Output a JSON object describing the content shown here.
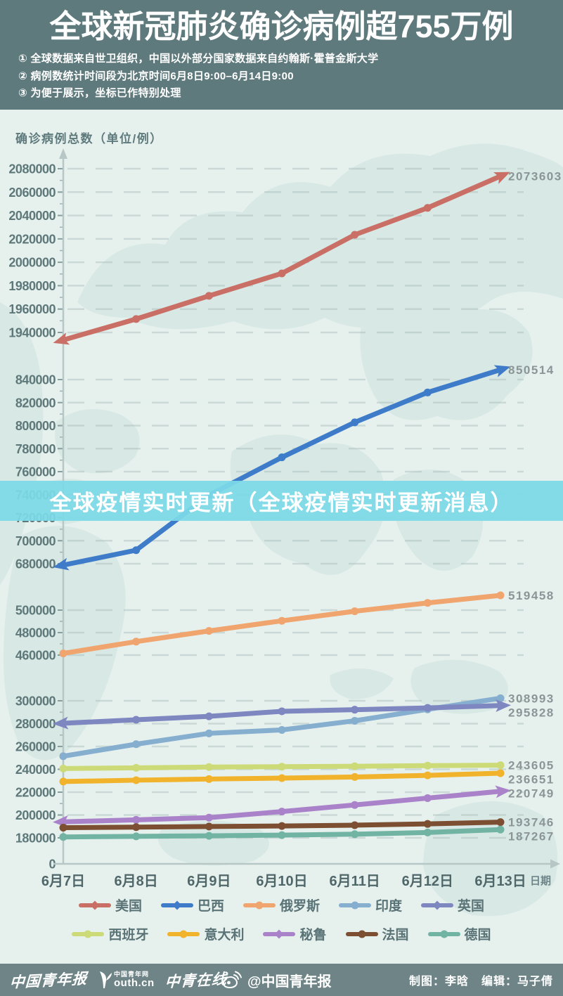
{
  "header": {
    "title": "全球新冠肺炎确诊病例超755万例",
    "notes": [
      "① 全球数据来自世卫组织，中国以外部分国家数据来自约翰斯·霍普金斯大学",
      "② 病例数统计时间段为北京时间6月8日9:00–6月14日9:00",
      "③ 为便于展示，坐标已作特别处理"
    ]
  },
  "banner": {
    "text": "全球疫情实时更新（全球疫情实时更新消息）"
  },
  "chart_data": {
    "type": "line",
    "title": "全球新冠肺炎确诊病例超755万例",
    "ylabel": "确诊病例总数（单位/例）",
    "xlabel": "日期",
    "legend_position": "bottom",
    "grid": true,
    "categories": [
      "6月7日",
      "6月8日",
      "6月9日",
      "6月10日",
      "6月11日",
      "6月12日",
      "6月13日"
    ],
    "y_ticks": [
      2080000,
      2060000,
      2040000,
      2020000,
      2000000,
      1980000,
      1960000,
      1940000,
      840000,
      820000,
      800000,
      780000,
      760000,
      740000,
      720000,
      700000,
      680000,
      500000,
      480000,
      460000,
      300000,
      280000,
      260000,
      240000,
      220000,
      200000,
      180000,
      0
    ],
    "y_axis_breaks": [
      [
        1940000,
        840000
      ],
      [
        680000,
        500000
      ],
      [
        460000,
        300000
      ],
      [
        180000,
        0
      ]
    ],
    "series": [
      {
        "key": "usa",
        "name": "美国",
        "color": "#c96f66",
        "marker": "arrow",
        "values": [
          1933500,
          1951500,
          1971300,
          1990500,
          2023500,
          2046500,
          2073603
        ],
        "end_label": "2073603"
      },
      {
        "key": "brazil",
        "name": "巴西",
        "color": "#3e7cc9",
        "marker": "arrow",
        "values": [
          672846,
          691758,
          739503,
          772416,
          802828,
          828810,
          850514
        ],
        "end_label": "850514"
      },
      {
        "key": "russia",
        "name": "俄罗斯",
        "color": "#f0a46e",
        "marker": "circle",
        "values": [
          461500,
          472000,
          481500,
          490500,
          499000,
          509500,
          519458
        ],
        "end_label": "519458"
      },
      {
        "key": "india",
        "name": "印度",
        "color": "#86aecf",
        "marker": "circle",
        "values": [
          251500,
          262000,
          271500,
          274500,
          282500,
          292500,
          308993
        ],
        "end_label": "308993"
      },
      {
        "key": "uk",
        "name": "英国",
        "color": "#7e87c0",
        "marker": "arrow",
        "values": [
          280300,
          283400,
          286400,
          290800,
          292200,
          293800,
          295828
        ],
        "end_label": "295828"
      },
      {
        "key": "spain",
        "name": "西班牙",
        "color": "#cdda78",
        "marker": "circle",
        "values": [
          240700,
          241300,
          242000,
          242300,
          242700,
          243200,
          243605
        ],
        "end_label": "243605"
      },
      {
        "key": "italy",
        "name": "意大利",
        "color": "#f2b32c",
        "marker": "circle",
        "values": [
          229300,
          230500,
          231500,
          232300,
          233300,
          234700,
          236651
        ],
        "end_label": "236651"
      },
      {
        "key": "peru",
        "name": "秘鲁",
        "color": "#aa82c9",
        "marker": "arrow",
        "values": [
          194000,
          195800,
          197700,
          203000,
          208800,
          214800,
          220749
        ],
        "end_label": "220749"
      },
      {
        "key": "france",
        "name": "法国",
        "color": "#7c4f33",
        "marker": "circle",
        "values": [
          188900,
          189400,
          189900,
          190400,
          191100,
          192200,
          193746
        ],
        "end_label": "193746"
      },
      {
        "key": "germany",
        "name": "德国",
        "color": "#72b4a3",
        "marker": "circle",
        "values": [
          180800,
          181300,
          181800,
          182400,
          183200,
          184700,
          187267
        ],
        "end_label": "187267"
      }
    ]
  },
  "footer": {
    "paper_logo": "中国青年报",
    "youth_logo_top": "中国青年网",
    "youth_logo_domain": "outh.cn",
    "online_logo": "中青在线",
    "weibo_handle": "@中国青年报",
    "credits": [
      "制图：李晗",
      "编辑：马子倩"
    ]
  },
  "colors": {
    "header_bg": "#5f7a7d",
    "footer_bg": "#6e8487",
    "banner_bg": "#7cd9e7",
    "plot_bg": "#e6f1ee",
    "map_watermark": "#d5e6e2",
    "grid": "#9db3b1",
    "axis": "#b7c7c5",
    "tick_label": "#5e787a",
    "end_label": "#8b9597"
  }
}
